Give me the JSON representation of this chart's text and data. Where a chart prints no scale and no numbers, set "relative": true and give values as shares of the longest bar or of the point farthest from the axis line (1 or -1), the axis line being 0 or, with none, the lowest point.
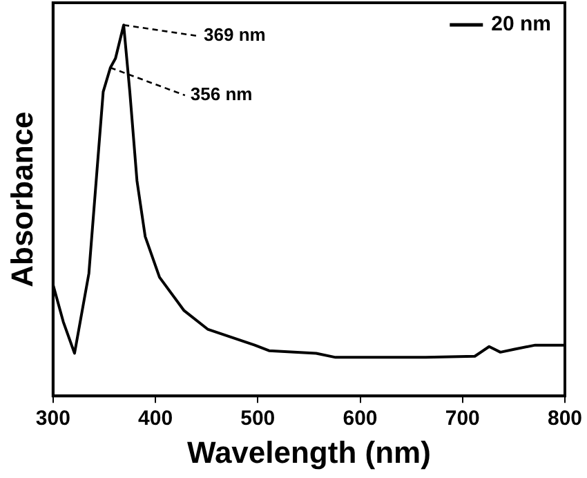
{
  "chart_data": {
    "type": "line",
    "xlabel": "Wavelength (nm)",
    "ylabel": "Absorbance",
    "relative": true,
    "xlim": [
      300,
      800
    ],
    "xticks": [
      300,
      400,
      500,
      600,
      700,
      800
    ],
    "grid": false,
    "legend": "top right",
    "marker": "none",
    "line_style": "solid",
    "series": [
      {
        "name": "20 nm",
        "color": "#000000",
        "x": [
          300,
          310,
          321,
          335,
          349,
          356,
          361,
          369,
          375,
          382,
          390,
          404,
          428,
          451,
          497,
          511,
          557,
          576,
          664,
          712,
          726,
          737,
          751,
          771,
          800
        ],
        "values": [
          0.3,
          0.2,
          0.115,
          0.33,
          0.82,
          0.885,
          0.91,
          1.0,
          0.82,
          0.58,
          0.43,
          0.32,
          0.23,
          0.18,
          0.137,
          0.122,
          0.115,
          0.104,
          0.104,
          0.107,
          0.133,
          0.118,
          0.126,
          0.137,
          0.137
        ]
      }
    ],
    "annotations": [
      {
        "text": "369 nm",
        "x": 369,
        "y": 1.0
      },
      {
        "text": "356 nm",
        "x": 356,
        "y": 0.885
      }
    ]
  }
}
